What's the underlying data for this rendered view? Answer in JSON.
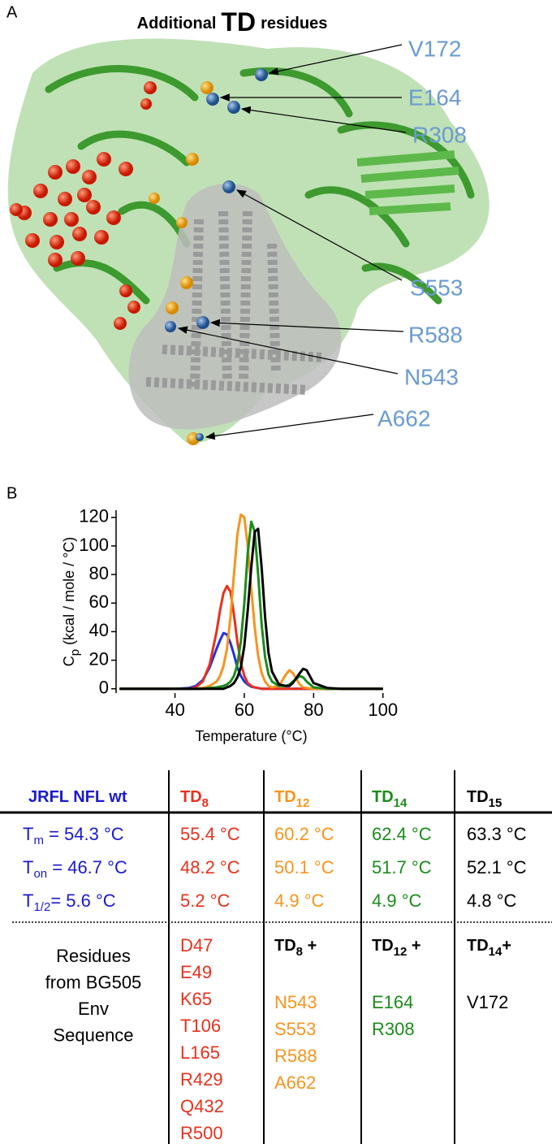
{
  "panel_a": {
    "label": "A",
    "title": [
      "Additional",
      "TD",
      "residues"
    ],
    "residue_labels": [
      "V172",
      "E164",
      "R308",
      "S553",
      "R588",
      "N543",
      "A662"
    ]
  },
  "panel_b": {
    "label": "B"
  },
  "chart_data": {
    "type": "line",
    "xlabel": "Temperature (°C)",
    "ylabel": [
      "C",
      "p",
      " (kcal / mole / °C)"
    ],
    "x": [
      24,
      30,
      35,
      40,
      44,
      46,
      48,
      50,
      52,
      53,
      54,
      55,
      56,
      57,
      58,
      59,
      60,
      61,
      62,
      63,
      64,
      65,
      66,
      67,
      68,
      70,
      72,
      73,
      74,
      76,
      77,
      78,
      80,
      84,
      88,
      92,
      96,
      100
    ],
    "series": [
      {
        "color": "#2233dd",
        "values": [
          0,
          0,
          0,
          0,
          0.5,
          2,
          6,
          15,
          28,
          34,
          39,
          38,
          32,
          24,
          15,
          9,
          5,
          3,
          1.5,
          1,
          0.5,
          0,
          0,
          0,
          0,
          0,
          0,
          0,
          0,
          0,
          0,
          0,
          0,
          0,
          0,
          0,
          0,
          0
        ]
      },
      {
        "color": "#e8301c",
        "values": [
          0,
          0,
          0,
          0,
          0,
          1,
          5,
          17,
          40,
          55,
          67,
          72,
          68,
          52,
          33,
          18,
          9,
          4,
          2,
          1,
          0.5,
          0,
          0,
          0,
          0,
          0,
          0,
          0,
          0,
          0,
          0,
          0,
          0,
          0,
          0,
          0,
          0,
          0
        ]
      },
      {
        "color": "#f7941d",
        "values": [
          0,
          0,
          0,
          0,
          0,
          0,
          0.5,
          2,
          5,
          9,
          16,
          28,
          50,
          80,
          108,
          122,
          120,
          100,
          70,
          43,
          23,
          11,
          5,
          2,
          1,
          2,
          10,
          13,
          11,
          3,
          1,
          0.5,
          0,
          0,
          0,
          0,
          0,
          0
        ]
      },
      {
        "color": "#1a8c1a",
        "values": [
          0,
          0,
          0,
          0,
          0,
          0,
          0,
          0.5,
          1,
          1.5,
          2,
          3,
          5,
          9,
          17,
          33,
          60,
          95,
          117,
          110,
          80,
          45,
          22,
          10,
          5,
          2,
          2,
          3,
          5,
          9,
          8,
          5,
          1,
          0,
          0,
          0,
          0,
          0
        ]
      },
      {
        "color": "#000000",
        "values": [
          0,
          0,
          0,
          0,
          0,
          0,
          0,
          0,
          0,
          0,
          0,
          1,
          2,
          4,
          8,
          15,
          30,
          55,
          85,
          110,
          112,
          85,
          50,
          25,
          12,
          3,
          2,
          2,
          4,
          11,
          14,
          13,
          4,
          0.5,
          0,
          0,
          0,
          0
        ]
      }
    ],
    "xlim": [
      23,
      101
    ],
    "ylim": [
      -3,
      125
    ],
    "xticks": [
      40,
      60,
      80,
      100
    ],
    "yticks": [
      0,
      20,
      40,
      60,
      80,
      100,
      120
    ]
  },
  "table": {
    "colors": [
      "#1a1acc",
      "#e8301c",
      "#f7941d",
      "#1a8c1a",
      "#000000"
    ],
    "header": [
      [
        "JRFL NFL wt"
      ],
      [
        "TD",
        "8"
      ],
      [
        "TD",
        "12"
      ],
      [
        "TD",
        "14"
      ],
      [
        "TD",
        "15"
      ]
    ],
    "rows": [
      [
        [
          "T",
          "m",
          " = 54.3 °C"
        ],
        "55.4 °C",
        "60.2 °C",
        "62.4 °C",
        "63.3 °C"
      ],
      [
        [
          "T",
          "on",
          " = 46.7 °C"
        ],
        "48.2 °C",
        "50.1 °C",
        "51.7 °C",
        "52.1 °C"
      ],
      [
        [
          "T",
          "1/2",
          "= 5.6 °C"
        ],
        "5.2 °C",
        "4.9 °C",
        "4.9 °C",
        "4.8 °C"
      ]
    ],
    "residues_label": [
      "Residues",
      "from BG505",
      "Env",
      "Sequence"
    ],
    "residue_heads": [
      [
        "TD",
        "8",
        " +"
      ],
      [
        "TD",
        "12",
        " +"
      ],
      [
        "TD",
        "14",
        "+"
      ]
    ],
    "residue_lists": [
      [
        "D47",
        "E49",
        "K65",
        "T106",
        "L165",
        "R429",
        "Q432",
        "R500"
      ],
      [
        "N543",
        "S553",
        "R588",
        "A662"
      ],
      [
        "E164",
        "R308"
      ],
      [
        "V172"
      ]
    ]
  }
}
